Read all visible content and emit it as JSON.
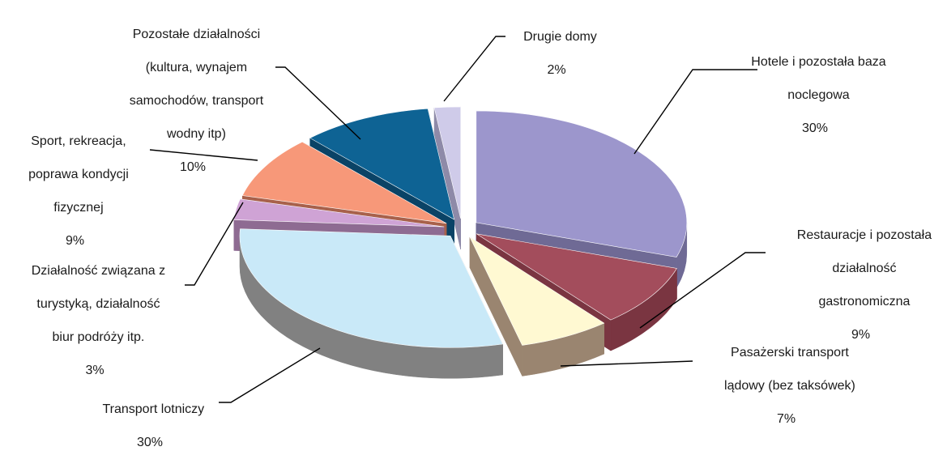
{
  "chart_data": {
    "type": "pie",
    "style": "3d-exploded",
    "title": "",
    "slices": [
      {
        "name": "Hotele i pozostała baza noclegowa",
        "label_lines": [
          "Hotele i pozostała baza",
          "noclegowa"
        ],
        "value": 30,
        "value_label": "30%",
        "top_color": "#9c96cc",
        "side_color": "#6f6a95"
      },
      {
        "name": "Restauracje i pozostała działalność gastronomiczna",
        "label_lines": [
          "Restauracje i pozostała",
          "działalność",
          "gastronomiczna"
        ],
        "value": 9,
        "value_label": "9%",
        "top_color": "#a34d5c",
        "side_color": "#7a3541"
      },
      {
        "name": "Pasażerski transport lądowy (bez taksówek)",
        "label_lines": [
          "Pasażerski transport",
          "lądowy (bez taksówek)"
        ],
        "value": 7,
        "value_label": "7%",
        "top_color": "#fff9d2",
        "side_color": "#9a8570"
      },
      {
        "name": "Transport lotniczy",
        "label_lines": [
          "Transport lotniczy"
        ],
        "value": 30,
        "value_label": "30%",
        "top_color": "#c9e9f8",
        "side_color": "#818181"
      },
      {
        "name": "Działalność związana z turystyką, działalność biur podróży itp.",
        "label_lines": [
          "Działalność związana z",
          "turystyką, działalność",
          "biur podróży itp."
        ],
        "value": 3,
        "value_label": "3%",
        "top_color": "#cfa3d5",
        "side_color": "#8e6b92"
      },
      {
        "name": "Sport, rekreacja, poprawa kondycji fizycznej",
        "label_lines": [
          "Sport, rekreacja,",
          "poprawa kondycji",
          "fizycznej"
        ],
        "value": 9,
        "value_label": "9%",
        "top_color": "#f79879",
        "side_color": "#a8614b"
      },
      {
        "name": "Pozostałe działalności (kultura, wynajem samochodów, transport wodny itp)",
        "label_lines": [
          "Pozostałe działalności",
          "(kultura, wynajem",
          "samochodów, transport",
          "wodny itp)"
        ],
        "value": 10,
        "value_label": "10%",
        "top_color": "#0e6394",
        "side_color": "#0a4366"
      },
      {
        "name": "Drugie domy",
        "label_lines": [
          "Drugie domy"
        ],
        "value": 2,
        "value_label": "2%",
        "top_color": "#cfcbe9",
        "side_color": "#8e8aa8"
      }
    ],
    "legend": "none",
    "labels": "outside with leader lines"
  }
}
